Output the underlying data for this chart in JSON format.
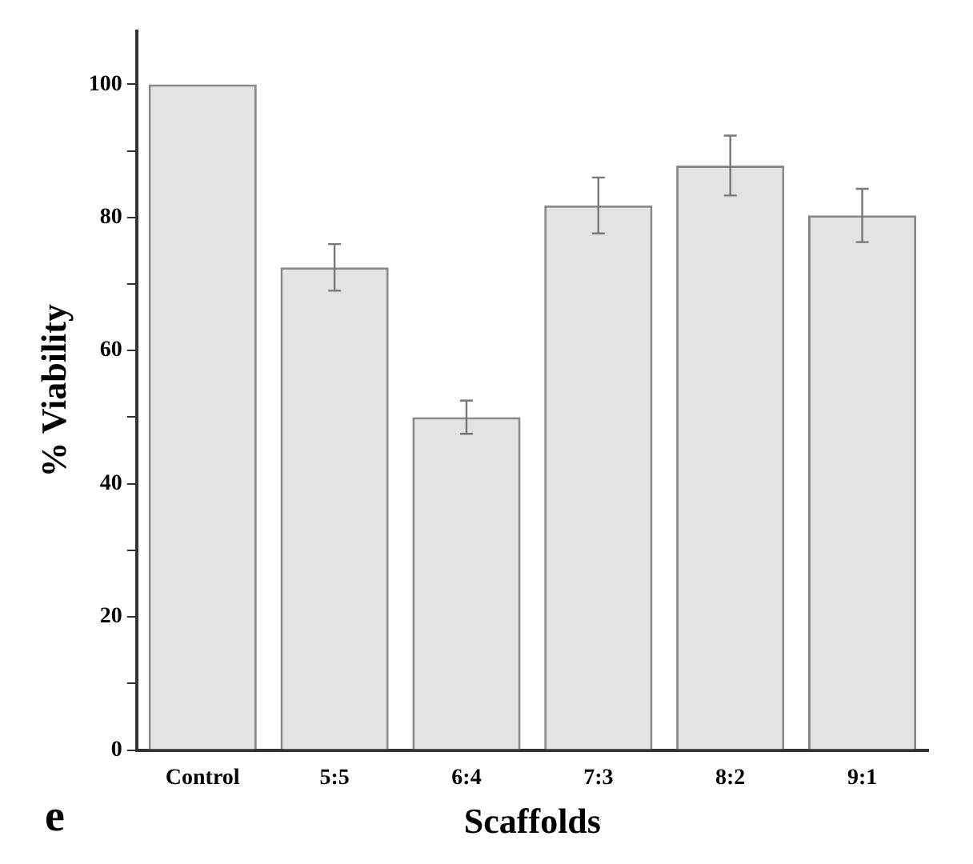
{
  "chart_data": {
    "type": "bar",
    "xlabel": "Scaffolds",
    "ylabel": "% Viability",
    "annotations": [
      "e"
    ],
    "categories": [
      "Control",
      "5:5",
      "6:4",
      "7:3",
      "8:2",
      "9:1"
    ],
    "values": [
      100,
      72.5,
      50,
      81.8,
      87.8,
      80.3
    ],
    "errors": [
      null,
      3.5,
      2.5,
      4.2,
      4.5,
      4
    ],
    "color": "#e3e3e3",
    "ylim": [
      0,
      108
    ],
    "yticks": [
      0,
      {
        "value": 10,
        "label": null
      },
      20,
      {
        "value": 30,
        "label": null
      },
      40,
      {
        "value": 50,
        "label": null
      },
      60,
      {
        "value": 70,
        "label": null
      },
      80,
      {
        "value": 90,
        "label": null
      },
      100
    ],
    "grid": false,
    "legend": false
  }
}
